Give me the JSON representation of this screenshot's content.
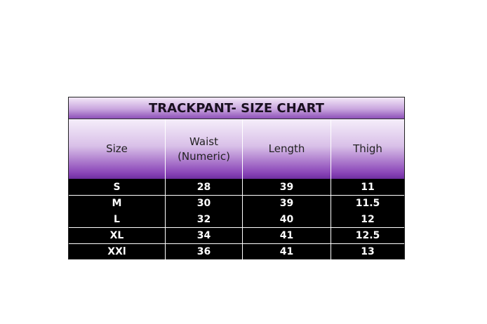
{
  "title": "TRACKPANT- SIZE CHART",
  "headers": [
    "Size",
    "Waist (Numeric)",
    "Length",
    "Thigh"
  ],
  "rows": [
    [
      "S",
      "28",
      "39",
      "11"
    ],
    [
      "M",
      "30",
      "39",
      "11.5"
    ],
    [
      "L",
      "32",
      "40",
      "12"
    ],
    [
      "XL",
      "34",
      "41",
      "12.5"
    ],
    [
      "XXl",
      "36",
      "41",
      "13"
    ]
  ],
  "colors": {
    "header_gradient_top": "#f5eefa",
    "header_gradient_bottom": "#6e2ea0",
    "body_bg": "#000000",
    "body_text": "#ffffff"
  }
}
